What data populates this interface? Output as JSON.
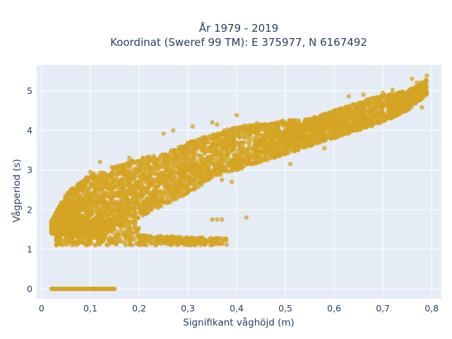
{
  "chart_data": {
    "type": "scatter",
    "title_line1": "År 1979 - 2019",
    "title_line2": "Koordinat (Sweref 99 TM): E 375977, N 6167492",
    "xlabel": "Signifikant våghöjd (m)",
    "ylabel": "Vågperiod (s)",
    "xlim": [
      -0.01,
      0.82
    ],
    "ylim": [
      -0.25,
      5.65
    ],
    "x_ticks": [
      0,
      0.1,
      0.2,
      0.3,
      0.4,
      0.5,
      0.6,
      0.7,
      0.8
    ],
    "x_tick_labels": [
      "0",
      "0,1",
      "0,2",
      "0,3",
      "0,4",
      "0,5",
      "0,6",
      "0,7",
      "0,8"
    ],
    "y_ticks": [
      0,
      1,
      2,
      3,
      4,
      5
    ],
    "y_tick_labels": [
      "0",
      "1",
      "2",
      "3",
      "4",
      "5"
    ],
    "grid": true,
    "legend": "none",
    "plot_bg": "#e5ecf6",
    "grid_color": "#ffffff",
    "marker_color": "#d4a423",
    "zero_band": {
      "x_range": [
        0.02,
        0.15
      ],
      "y": 0
    },
    "low_band": {
      "x_range": [
        0.03,
        0.38
      ],
      "y_range": [
        1.1,
        1.8
      ]
    },
    "main_trend": [
      {
        "x": 0.02,
        "y_low": 1.4,
        "y_high": 1.7
      },
      {
        "x": 0.05,
        "y_low": 1.3,
        "y_high": 2.4
      },
      {
        "x": 0.1,
        "y_low": 1.3,
        "y_high": 2.9
      },
      {
        "x": 0.15,
        "y_low": 1.5,
        "y_high": 3.1
      },
      {
        "x": 0.2,
        "y_low": 1.8,
        "y_high": 3.3
      },
      {
        "x": 0.25,
        "y_low": 2.1,
        "y_high": 3.4
      },
      {
        "x": 0.3,
        "y_low": 2.4,
        "y_high": 3.7
      },
      {
        "x": 0.35,
        "y_low": 2.8,
        "y_high": 3.9
      },
      {
        "x": 0.4,
        "y_low": 3.0,
        "y_high": 4.1
      },
      {
        "x": 0.45,
        "y_low": 3.2,
        "y_high": 4.2
      },
      {
        "x": 0.5,
        "y_low": 3.4,
        "y_high": 4.25
      },
      {
        "x": 0.55,
        "y_low": 3.6,
        "y_high": 4.3
      },
      {
        "x": 0.6,
        "y_low": 3.8,
        "y_high": 4.5
      },
      {
        "x": 0.65,
        "y_low": 4.0,
        "y_high": 4.7
      },
      {
        "x": 0.7,
        "y_low": 4.2,
        "y_high": 4.9
      },
      {
        "x": 0.75,
        "y_low": 4.5,
        "y_high": 5.0
      },
      {
        "x": 0.79,
        "y_low": 4.9,
        "y_high": 5.3
      }
    ],
    "outliers": [
      {
        "x": 0.79,
        "y": 5.38
      },
      {
        "x": 0.76,
        "y": 5.3
      },
      {
        "x": 0.77,
        "y": 5.2
      },
      {
        "x": 0.72,
        "y": 5.02
      },
      {
        "x": 0.7,
        "y": 4.95
      },
      {
        "x": 0.63,
        "y": 4.86
      },
      {
        "x": 0.66,
        "y": 4.9
      },
      {
        "x": 0.4,
        "y": 4.38
      },
      {
        "x": 0.36,
        "y": 4.15
      },
      {
        "x": 0.35,
        "y": 4.2
      },
      {
        "x": 0.31,
        "y": 4.1
      },
      {
        "x": 0.25,
        "y": 3.92
      },
      {
        "x": 0.27,
        "y": 4.0
      },
      {
        "x": 0.18,
        "y": 3.3
      },
      {
        "x": 0.12,
        "y": 3.2
      },
      {
        "x": 0.1,
        "y": 2.95
      },
      {
        "x": 0.06,
        "y": 2.5
      },
      {
        "x": 0.03,
        "y": 1.92
      },
      {
        "x": 0.42,
        "y": 1.8
      },
      {
        "x": 0.37,
        "y": 1.75
      },
      {
        "x": 0.36,
        "y": 1.75
      },
      {
        "x": 0.35,
        "y": 1.75
      },
      {
        "x": 0.51,
        "y": 3.15
      },
      {
        "x": 0.58,
        "y": 3.55
      },
      {
        "x": 0.72,
        "y": 4.35
      },
      {
        "x": 0.67,
        "y": 4.3
      },
      {
        "x": 0.62,
        "y": 3.9
      },
      {
        "x": 0.39,
        "y": 2.7
      },
      {
        "x": 0.37,
        "y": 2.75
      },
      {
        "x": 0.46,
        "y": 3.4
      },
      {
        "x": 0.77,
        "y": 4.85
      },
      {
        "x": 0.79,
        "y": 4.95
      },
      {
        "x": 0.78,
        "y": 4.58
      }
    ]
  }
}
